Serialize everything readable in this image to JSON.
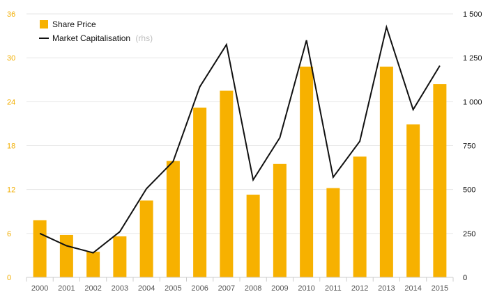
{
  "chart_data": {
    "type": "bar+line",
    "title": "",
    "categories": [
      "2000",
      "2001",
      "2002",
      "2003",
      "2004",
      "2005",
      "2006",
      "2007",
      "2008",
      "2009",
      "2010",
      "2011",
      "2012",
      "2013",
      "2014",
      "2015"
    ],
    "series": [
      {
        "name": "Share Price",
        "type": "bar",
        "axis": "left",
        "color": "#f7b100",
        "values": [
          7.8,
          5.8,
          3.5,
          5.6,
          10.5,
          15.9,
          23.2,
          25.5,
          11.3,
          15.5,
          28.8,
          12.2,
          16.5,
          28.8,
          20.9,
          26.4
        ]
      },
      {
        "name": "Market Capitalisation",
        "type": "line",
        "axis": "right",
        "color": "#111111",
        "values": [
          250,
          180,
          140,
          260,
          505,
          660,
          1085,
          1325,
          555,
          795,
          1350,
          570,
          775,
          1425,
          955,
          1205
        ]
      }
    ],
    "legend": {
      "placement": "top-left",
      "items": [
        {
          "label": "Share Price",
          "note": ""
        },
        {
          "label": "Market Capitalisation",
          "note": "(rhs)"
        }
      ]
    },
    "y_left": {
      "min": 0,
      "max": 36,
      "ticks": [
        "0",
        "6",
        "12",
        "18",
        "24",
        "30",
        "36"
      ],
      "tick_values": [
        0,
        6,
        12,
        18,
        24,
        30,
        36
      ]
    },
    "y_right": {
      "min": 0,
      "max": 1500,
      "ticks": [
        "0",
        "250",
        "500",
        "750",
        "1 000",
        "1 250",
        "1 500"
      ],
      "tick_values": [
        0,
        250,
        500,
        750,
        1000,
        1250,
        1500
      ]
    },
    "grid": true,
    "colors": {
      "bar": "#f7b100",
      "line": "#111111",
      "left_axis_text": "#f2ae00",
      "right_axis_text": "#111111",
      "grid": "#e6e6e6"
    }
  }
}
